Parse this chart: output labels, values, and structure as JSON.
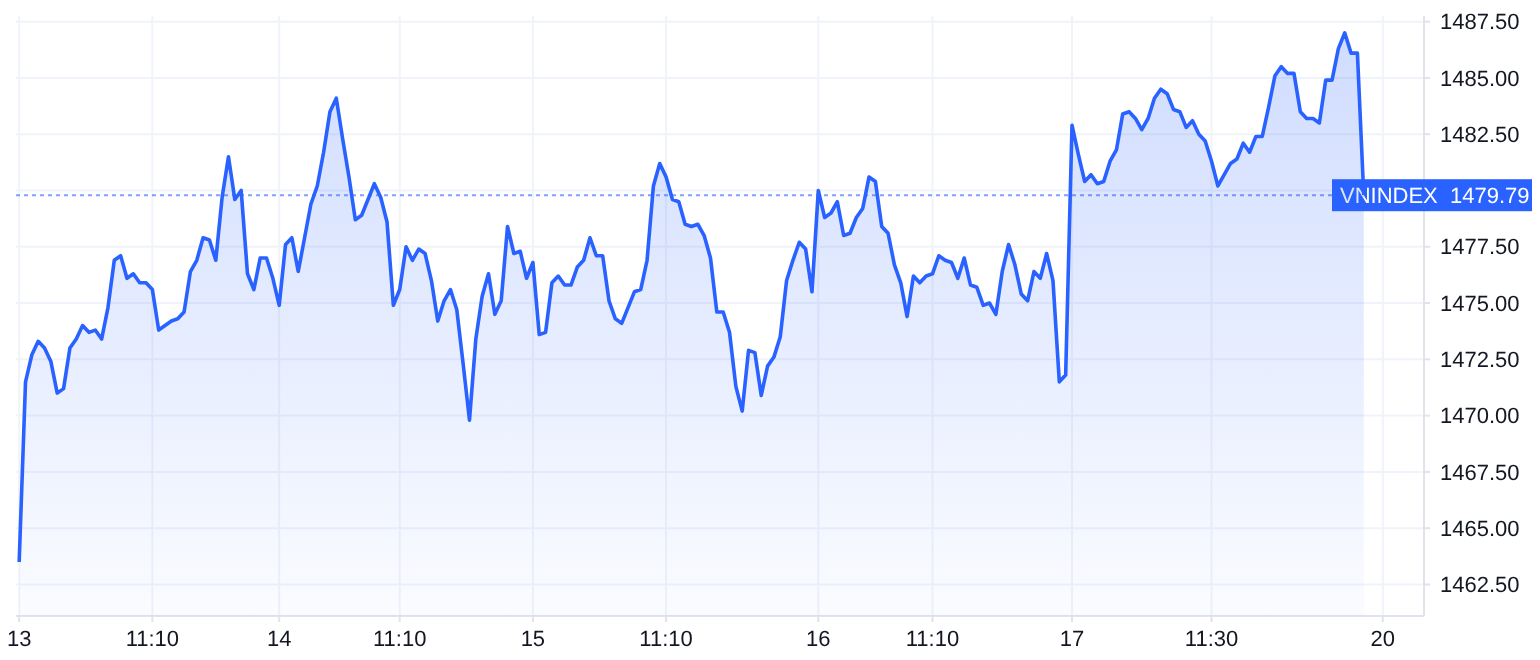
{
  "chart_data": {
    "type": "area",
    "ylim": [
      1461.1,
      1487.75
    ],
    "categories": [
      "13",
      null,
      null,
      null,
      null,
      null,
      null,
      null,
      null,
      null,
      null,
      null,
      null,
      null,
      null,
      null,
      null,
      null,
      null,
      null,
      null,
      "11:10",
      null,
      null,
      null,
      null,
      null,
      null,
      null,
      null,
      null,
      null,
      null,
      null,
      null,
      null,
      null,
      null,
      null,
      null,
      null,
      "14",
      null,
      null,
      null,
      null,
      null,
      null,
      null,
      null,
      null,
      null,
      null,
      null,
      null,
      null,
      null,
      null,
      null,
      null,
      "11:10",
      null,
      null,
      null,
      null,
      null,
      null,
      null,
      null,
      null,
      null,
      null,
      null,
      null,
      null,
      null,
      null,
      null,
      null,
      null,
      null,
      "15",
      null,
      null,
      null,
      null,
      null,
      null,
      null,
      null,
      null,
      null,
      null,
      null,
      null,
      null,
      null,
      null,
      null,
      null,
      null,
      null,
      "11:10",
      null,
      null,
      null,
      null,
      null,
      null,
      null,
      null,
      null,
      null,
      null,
      null,
      null,
      null,
      null,
      null,
      null,
      null,
      null,
      null,
      null,
      null,
      null,
      "16",
      null,
      null,
      null,
      null,
      null,
      null,
      null,
      null,
      null,
      null,
      null,
      null,
      null,
      null,
      null,
      null,
      null,
      "11:10",
      null,
      null,
      null,
      null,
      null,
      null,
      null,
      null,
      null,
      null,
      null,
      null,
      null,
      null,
      null,
      null,
      null,
      null,
      null,
      null,
      null,
      "17",
      null,
      null,
      null,
      null,
      null,
      null,
      null,
      null,
      null,
      null,
      null,
      null,
      null,
      null,
      null,
      null,
      null,
      null,
      null,
      null,
      null,
      "11:30",
      null,
      null,
      null,
      null,
      null,
      null,
      null,
      null,
      null,
      null,
      null,
      null,
      null,
      null,
      null,
      null,
      null,
      null,
      null,
      null,
      null,
      null,
      null,
      null,
      null,
      null,
      "20"
    ],
    "yticks": [
      {
        "value": 1462.5,
        "label": "1462.50"
      },
      {
        "value": 1465,
        "label": "1465.00"
      },
      {
        "value": 1467.5,
        "label": "1467.50"
      },
      {
        "value": 1470,
        "label": "1470.00"
      },
      {
        "value": 1472.5,
        "label": "1472.50"
      },
      {
        "value": 1475,
        "label": "1475.00"
      },
      {
        "value": 1477.5,
        "label": "1477.50"
      },
      {
        "value": 1480,
        "label": null
      },
      {
        "value": 1482.5,
        "label": "1482.50"
      },
      {
        "value": 1485,
        "label": "1485.00"
      },
      {
        "value": 1487.5,
        "label": "1487.50"
      }
    ],
    "grid": true,
    "ref_lines": [
      {
        "axis": "y",
        "value": 1479.79,
        "label": "VNINDEX  1479.79",
        "color": "#2962ff",
        "line_style": "dotted"
      }
    ],
    "series": [
      {
        "color": "#2962ff",
        "values": [
          1463.5,
          1471.5,
          1472.7,
          1473.3,
          1473.0,
          1472.4,
          1471.0,
          1471.2,
          1473.0,
          1473.4,
          1474.0,
          1473.7,
          1473.8,
          1473.4,
          1474.8,
          1476.9,
          1477.1,
          1476.1,
          1476.3,
          1475.9,
          1475.9,
          1475.6,
          1473.8,
          1474.0,
          1474.2,
          1474.3,
          1474.6,
          1476.4,
          1476.9,
          1477.9,
          1477.8,
          1476.9,
          1479.7,
          1481.5,
          1479.6,
          1480.0,
          1476.3,
          1475.6,
          1477.0,
          1477.0,
          1476.1,
          1474.9,
          1477.6,
          1477.9,
          1476.4,
          1477.9,
          1479.4,
          1480.2,
          1481.7,
          1483.5,
          1484.1,
          1482.3,
          1480.6,
          1478.7,
          1478.9,
          1479.6,
          1480.3,
          1479.7,
          1478.6,
          1474.9,
          1475.6,
          1477.5,
          1476.9,
          1477.4,
          1477.2,
          1476.0,
          1474.2,
          1475.1,
          1475.6,
          1474.7,
          1472.3,
          1469.8,
          1473.4,
          1475.3,
          1476.3,
          1474.5,
          1475.1,
          1478.4,
          1477.2,
          1477.3,
          1476.1,
          1476.8,
          1473.6,
          1473.7,
          1475.9,
          1476.2,
          1475.8,
          1475.8,
          1476.6,
          1476.9,
          1477.9,
          1477.1,
          1477.1,
          1475.1,
          1474.3,
          1474.1,
          1474.8,
          1475.5,
          1475.6,
          1476.9,
          1480.2,
          1481.2,
          1480.6,
          1479.6,
          1479.5,
          1478.5,
          1478.4,
          1478.5,
          1478.0,
          1477.0,
          1474.6,
          1474.6,
          1473.7,
          1471.3,
          1470.2,
          1472.9,
          1472.8,
          1470.9,
          1472.2,
          1472.6,
          1473.5,
          1476.0,
          1476.9,
          1477.7,
          1477.4,
          1475.5,
          1480.0,
          1478.8,
          1479.0,
          1479.5,
          1478.0,
          1478.1,
          1478.8,
          1479.2,
          1480.6,
          1480.4,
          1478.4,
          1478.1,
          1476.7,
          1475.9,
          1474.4,
          1476.2,
          1475.9,
          1476.2,
          1476.3,
          1477.1,
          1476.9,
          1476.8,
          1476.1,
          1477.0,
          1475.8,
          1475.7,
          1474.9,
          1475.0,
          1474.5,
          1476.4,
          1477.6,
          1476.7,
          1475.4,
          1475.1,
          1476.4,
          1476.1,
          1477.2,
          1476.0,
          1471.5,
          1471.8,
          1482.9,
          1481.6,
          1480.4,
          1480.7,
          1480.3,
          1480.4,
          1481.3,
          1481.8,
          1483.4,
          1483.5,
          1483.2,
          1482.7,
          1483.2,
          1484.1,
          1484.5,
          1484.3,
          1483.6,
          1483.5,
          1482.8,
          1483.1,
          1482.5,
          1482.2,
          1481.3,
          1480.2,
          1480.7,
          1481.2,
          1481.4,
          1482.1,
          1481.7,
          1482.4,
          1482.4,
          1483.7,
          1485.1,
          1485.5,
          1485.2,
          1485.2,
          1483.5,
          1483.2,
          1483.2,
          1483.0,
          1484.9,
          1484.9,
          1486.3,
          1487.0,
          1486.1,
          1486.1,
          1479.8,
          null,
          null,
          null
        ]
      }
    ]
  }
}
